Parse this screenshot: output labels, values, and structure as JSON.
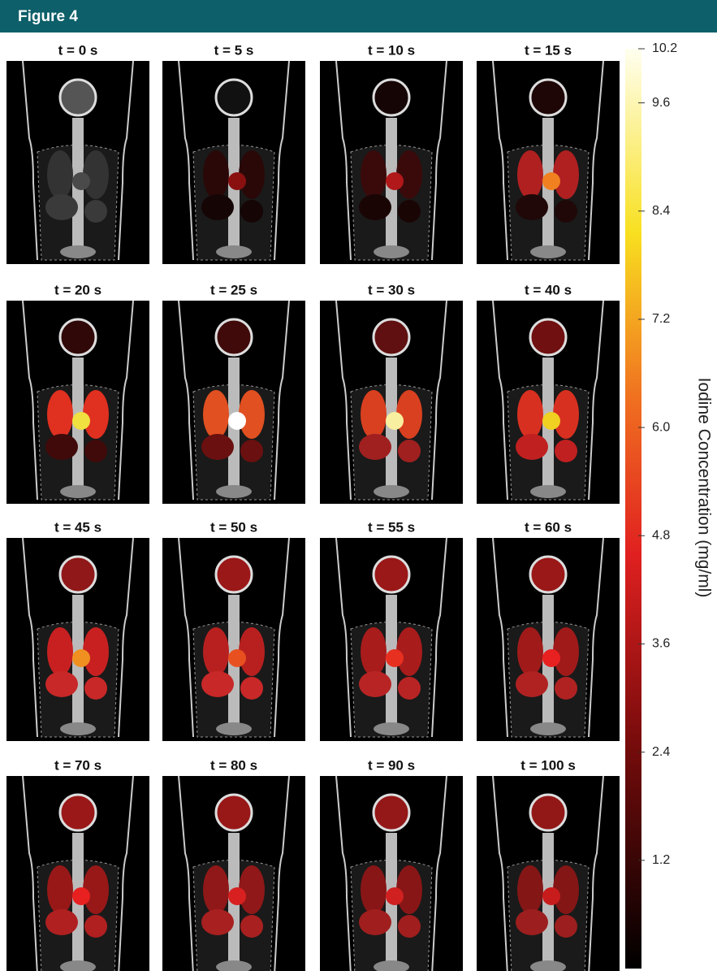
{
  "header": {
    "title": "Figure 4"
  },
  "panels": [
    "t = 0 s",
    "t = 5 s",
    "t = 10 s",
    "t = 15 s",
    "t = 20 s",
    "t = 25 s",
    "t = 30 s",
    "t = 40 s",
    "t = 45 s",
    "t = 50 s",
    "t = 55 s",
    "t = 60 s",
    "t = 70 s",
    "t = 80 s",
    "t = 90 s",
    "t = 100 s"
  ],
  "colorbar": {
    "label": "Iodine Concentration  (mg/ml)",
    "lim": [
      0,
      10.2
    ],
    "ticks": [
      1.2,
      2.4,
      3.6,
      4.8,
      {
        "value": 6.0,
        "label": "6.0"
      },
      7.2,
      8.4,
      9.6,
      10.2
    ]
  }
}
